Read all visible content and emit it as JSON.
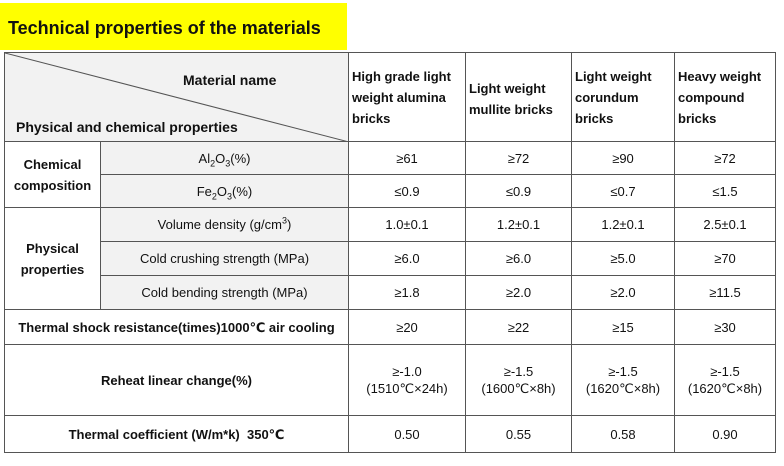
{
  "title": "Technical properties of the materials",
  "header": {
    "material_name": "Material name",
    "physical_chemical": "Physical and chemical properties",
    "products": [
      "High grade light weight alumina bricks",
      "Light weight mullite bricks",
      "Light weight corundum bricks",
      "Heavy weight compound bricks"
    ]
  },
  "groups": {
    "chemical": "Chemical composition",
    "physical": "Physical properties"
  },
  "rows": {
    "al2o3": {
      "label_main": "Al",
      "label_sub1": "2",
      "label_mid": "O",
      "label_sub2": "3",
      "label_tail": "(%)",
      "values": [
        "≥61",
        "≥72",
        "≥90",
        "≥72"
      ]
    },
    "fe2o3": {
      "label_main": "Fe",
      "label_sub1": "2",
      "label_mid": "O",
      "label_sub2": "3",
      "label_tail": "(%)",
      "values": [
        "≤0.9",
        "≤0.9",
        "≤0.7",
        "≤1.5"
      ]
    },
    "density": {
      "label": "Volume density (g/cm",
      "label_sup": "3",
      "label_tail": ")",
      "values": [
        "1.0±0.1",
        "1.2±0.1",
        "1.2±0.1",
        "2.5±0.1"
      ]
    },
    "crushing": {
      "label": "Cold crushing strength (MPa)",
      "values": [
        "≥6.0",
        "≥6.0",
        "≥5.0",
        "≥70"
      ]
    },
    "bending": {
      "label": "Cold bending strength (MPa)",
      "values": [
        "≥1.8",
        "≥2.0",
        "≥2.0",
        "≥11.5"
      ]
    },
    "thermal_shock": {
      "label": "Thermal shock resistance(times)1000℃ air cooling",
      "values": [
        "≥20",
        "≥22",
        "≥15",
        "≥30"
      ]
    },
    "reheat": {
      "label": "Reheat linear change(%)",
      "values": [
        "≥-1.0",
        "≥-1.5",
        "≥-1.5",
        "≥-1.5"
      ],
      "conditions": [
        "(1510℃×24h)",
        "(1600℃×8h)",
        "(1620℃×8h)",
        "(1620℃×8h)"
      ]
    },
    "thermal_coeff": {
      "label": "Thermal coefficient (W/m*k)  350℃",
      "values": [
        "0.50",
        "0.55",
        "0.58",
        "0.90"
      ]
    }
  }
}
